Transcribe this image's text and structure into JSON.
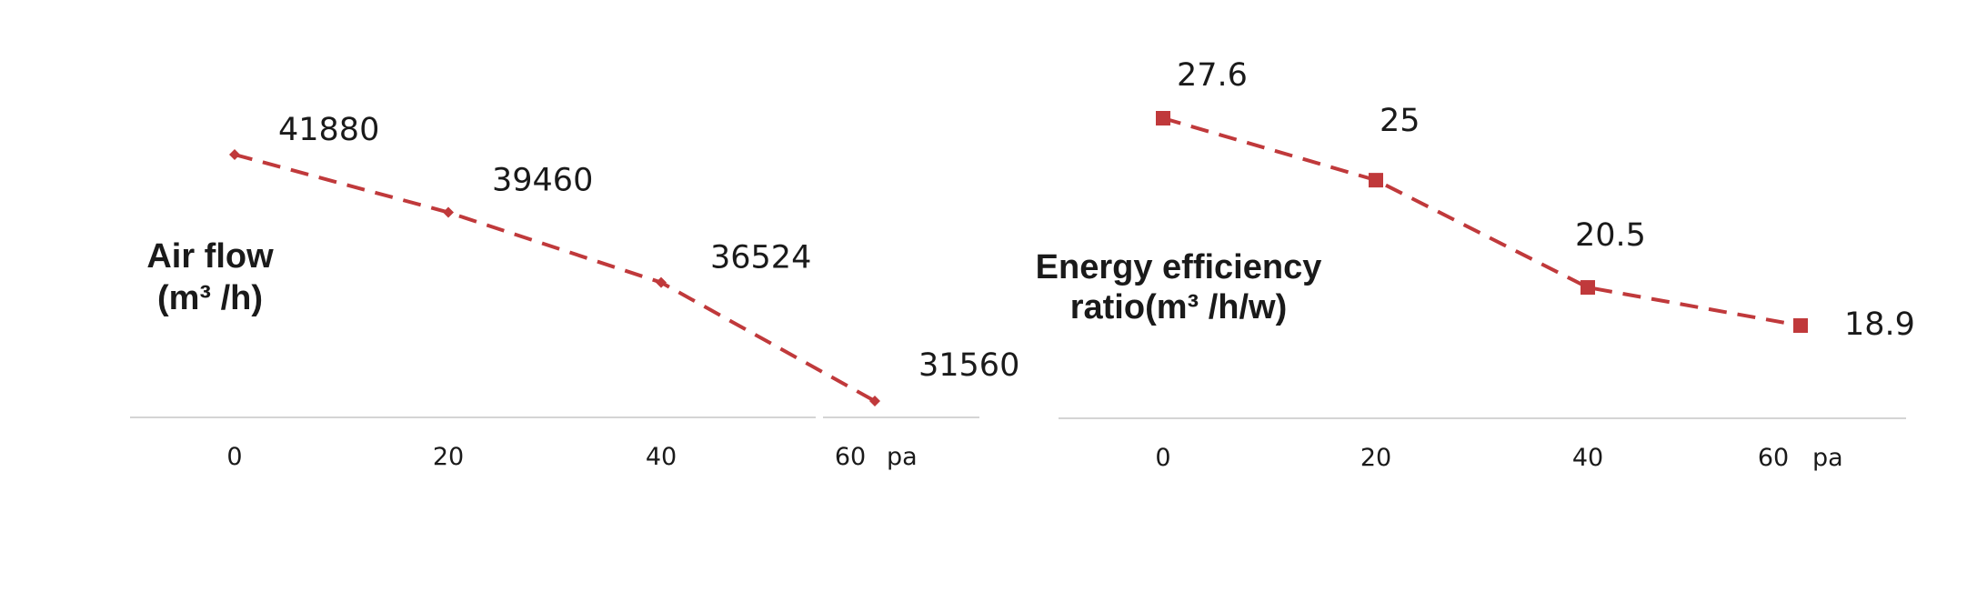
{
  "chart_data": [
    {
      "type": "line",
      "ylabel_lines": [
        "Air flow",
        "(m³ /h)"
      ],
      "x": [
        0,
        20,
        40,
        60
      ],
      "tick_labels": [
        "0",
        "20",
        "40",
        "60"
      ],
      "x_unit": "pa",
      "series": [
        {
          "values": [
            41880,
            39460,
            36524,
            31560
          ],
          "data_labels": [
            "41880",
            "39460",
            "36524",
            "31560"
          ],
          "marker": "diamond",
          "color": "#c0393b"
        }
      ],
      "grid": false,
      "legend": "none"
    },
    {
      "type": "line",
      "ylabel_lines": [
        "Energy efficiency",
        "ratio(m³ /h/w)"
      ],
      "x": [
        0,
        20,
        40,
        60
      ],
      "tick_labels": [
        "0",
        "20",
        "40",
        "60"
      ],
      "x_unit": "pa",
      "series": [
        {
          "values": [
            27.6,
            25,
            20.5,
            18.9
          ],
          "data_labels": [
            "27.6",
            "25",
            "20.5",
            "18.9"
          ],
          "marker": "square",
          "color": "#c0393b"
        }
      ],
      "grid": false,
      "legend": "none"
    }
  ]
}
